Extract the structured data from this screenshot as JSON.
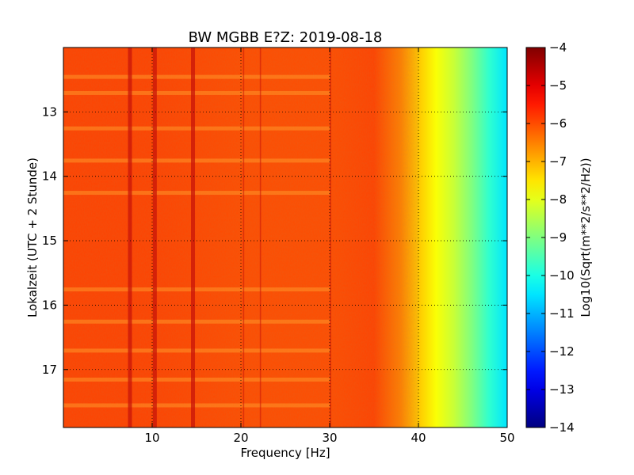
{
  "chart_data": {
    "type": "heatmap",
    "title": "BW MGBB E?Z: 2019-08-18",
    "xlabel": "Frequency [Hz]",
    "ylabel": "Lokalzeit (UTC + 2 Stunde)",
    "xlim": [
      0,
      50
    ],
    "ylim": [
      17.9,
      12.0
    ],
    "xticks": [
      10,
      20,
      30,
      40,
      50
    ],
    "xtick_labels": [
      "10",
      "20",
      "30",
      "40",
      "50"
    ],
    "yticks": [
      13,
      14,
      15,
      16,
      17
    ],
    "ytick_labels": [
      "13",
      "14",
      "15",
      "16",
      "17"
    ],
    "grid": true,
    "colorbar": {
      "label": "Log10(Sqrt(m**2/s**2/Hz))",
      "range": [
        -14,
        -4
      ],
      "ticks": [
        -4,
        -5,
        -6,
        -7,
        -8,
        -9,
        -10,
        -11,
        -12,
        -13,
        -14
      ],
      "tick_labels": [
        "−4",
        "−5",
        "−6",
        "−7",
        "−8",
        "−9",
        "−10",
        "−11",
        "−12",
        "−13",
        "−14"
      ],
      "colormap": "jet"
    },
    "spectral_profile": {
      "frequency_hz": [
        0,
        10,
        20,
        30,
        35,
        38,
        40,
        42,
        44,
        46,
        48,
        50
      ],
      "log10_amplitude": [
        -5.9,
        -5.9,
        -6.0,
        -6.0,
        -5.9,
        -6.5,
        -7.2,
        -7.8,
        -8.3,
        -9.0,
        -9.8,
        -10.5
      ]
    },
    "vertical_lines_hz": [
      7.5,
      10.3,
      14.6,
      20.3,
      22.2,
      30.1
    ],
    "horizontal_bands_h": [
      12.45,
      12.7,
      13.25,
      13.75,
      14.25,
      15.75,
      16.25,
      16.7,
      17.15,
      17.55
    ]
  }
}
